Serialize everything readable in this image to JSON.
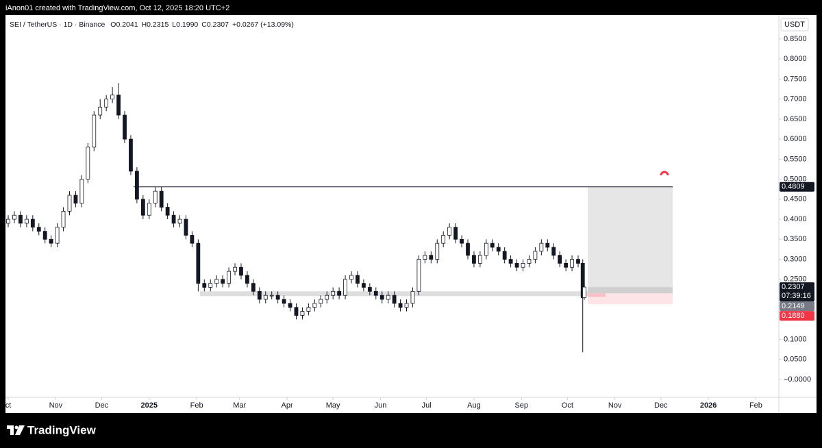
{
  "header": {
    "caption": "iAnon01 created with TradingView.com, Oct 12, 2025 18:20 UTC+2"
  },
  "footer": {
    "logo": "TradingView"
  },
  "chart_data": {
    "type": "candlestick",
    "symbol": "SEI / TetherUS · 1D · Binance",
    "ohlc_legend": [
      "O0.2041",
      "H0.2315",
      "L0.1990",
      "C0.2307",
      "+0.0267 (+13.09%)"
    ],
    "currency": "USDT",
    "x": [
      0,
      4,
      8,
      12,
      16,
      20,
      24,
      28,
      32,
      36,
      40,
      44,
      48,
      52,
      56,
      60,
      64,
      68,
      72,
      76,
      80,
      84,
      88,
      92,
      96,
      100,
      104,
      108,
      112,
      116,
      120,
      124,
      128,
      132,
      136,
      140,
      144,
      148,
      152,
      156,
      160,
      164,
      168,
      172,
      176,
      180,
      184,
      188,
      192,
      196,
      200,
      204,
      208,
      212,
      216,
      220,
      224,
      228,
      232,
      236,
      240,
      244,
      248,
      252,
      256,
      260,
      264,
      268,
      272,
      276,
      280,
      284,
      288,
      292,
      296,
      300,
      304,
      308,
      312,
      316,
      320,
      324,
      328,
      332,
      336,
      340,
      344,
      348,
      352,
      356,
      360,
      364,
      368,
      372,
      375,
      376
    ],
    "open": [
      0.39,
      0.4,
      0.41,
      0.39,
      0.4,
      0.38,
      0.37,
      0.35,
      0.34,
      0.38,
      0.42,
      0.46,
      0.44,
      0.5,
      0.58,
      0.66,
      0.68,
      0.7,
      0.71,
      0.66,
      0.6,
      0.52,
      0.45,
      0.41,
      0.44,
      0.47,
      0.43,
      0.41,
      0.39,
      0.4,
      0.36,
      0.34,
      0.24,
      0.23,
      0.24,
      0.25,
      0.24,
      0.27,
      0.28,
      0.26,
      0.24,
      0.22,
      0.2,
      0.21,
      0.21,
      0.2,
      0.19,
      0.18,
      0.16,
      0.17,
      0.18,
      0.19,
      0.2,
      0.21,
      0.22,
      0.21,
      0.25,
      0.26,
      0.24,
      0.23,
      0.22,
      0.21,
      0.2,
      0.21,
      0.19,
      0.18,
      0.19,
      0.22,
      0.3,
      0.31,
      0.3,
      0.34,
      0.36,
      0.38,
      0.35,
      0.34,
      0.31,
      0.29,
      0.31,
      0.34,
      0.33,
      0.32,
      0.3,
      0.29,
      0.28,
      0.29,
      0.3,
      0.32,
      0.34,
      0.33,
      0.31,
      0.29,
      0.28,
      0.3,
      0.29,
      0.2041
    ],
    "high": [
      0.41,
      0.42,
      0.42,
      0.41,
      0.41,
      0.39,
      0.38,
      0.36,
      0.39,
      0.43,
      0.47,
      0.47,
      0.51,
      0.59,
      0.67,
      0.7,
      0.71,
      0.73,
      0.74,
      0.67,
      0.61,
      0.53,
      0.46,
      0.45,
      0.48,
      0.48,
      0.44,
      0.42,
      0.41,
      0.41,
      0.37,
      0.35,
      0.25,
      0.25,
      0.26,
      0.26,
      0.28,
      0.29,
      0.29,
      0.27,
      0.25,
      0.23,
      0.22,
      0.22,
      0.22,
      0.21,
      0.2,
      0.19,
      0.18,
      0.19,
      0.2,
      0.21,
      0.22,
      0.23,
      0.23,
      0.26,
      0.27,
      0.27,
      0.25,
      0.24,
      0.23,
      0.22,
      0.22,
      0.22,
      0.2,
      0.2,
      0.23,
      0.31,
      0.32,
      0.32,
      0.35,
      0.37,
      0.39,
      0.39,
      0.36,
      0.35,
      0.32,
      0.32,
      0.35,
      0.35,
      0.34,
      0.33,
      0.31,
      0.3,
      0.3,
      0.31,
      0.33,
      0.35,
      0.35,
      0.34,
      0.32,
      0.3,
      0.31,
      0.31,
      0.3,
      0.2315
    ],
    "low": [
      0.38,
      0.39,
      0.38,
      0.38,
      0.37,
      0.36,
      0.34,
      0.33,
      0.33,
      0.37,
      0.41,
      0.43,
      0.43,
      0.49,
      0.57,
      0.65,
      0.67,
      0.69,
      0.65,
      0.59,
      0.51,
      0.44,
      0.4,
      0.4,
      0.43,
      0.42,
      0.4,
      0.38,
      0.38,
      0.35,
      0.33,
      0.22,
      0.22,
      0.22,
      0.23,
      0.23,
      0.23,
      0.26,
      0.25,
      0.23,
      0.21,
      0.19,
      0.19,
      0.2,
      0.19,
      0.18,
      0.17,
      0.15,
      0.15,
      0.16,
      0.17,
      0.18,
      0.19,
      0.2,
      0.2,
      0.2,
      0.24,
      0.23,
      0.22,
      0.21,
      0.2,
      0.19,
      0.19,
      0.18,
      0.17,
      0.17,
      0.18,
      0.21,
      0.29,
      0.29,
      0.29,
      0.33,
      0.35,
      0.34,
      0.33,
      0.3,
      0.28,
      0.28,
      0.3,
      0.32,
      0.31,
      0.29,
      0.28,
      0.27,
      0.27,
      0.28,
      0.29,
      0.31,
      0.32,
      0.3,
      0.28,
      0.27,
      0.27,
      0.28,
      0.068,
      0.199
    ],
    "close": [
      0.4,
      0.41,
      0.39,
      0.4,
      0.38,
      0.37,
      0.35,
      0.34,
      0.38,
      0.42,
      0.46,
      0.44,
      0.5,
      0.58,
      0.66,
      0.68,
      0.7,
      0.71,
      0.66,
      0.6,
      0.52,
      0.45,
      0.41,
      0.44,
      0.47,
      0.43,
      0.41,
      0.39,
      0.4,
      0.36,
      0.34,
      0.24,
      0.23,
      0.24,
      0.25,
      0.24,
      0.27,
      0.28,
      0.26,
      0.24,
      0.22,
      0.2,
      0.21,
      0.21,
      0.2,
      0.19,
      0.18,
      0.16,
      0.17,
      0.18,
      0.19,
      0.2,
      0.21,
      0.22,
      0.21,
      0.25,
      0.26,
      0.24,
      0.23,
      0.22,
      0.21,
      0.2,
      0.21,
      0.19,
      0.18,
      0.19,
      0.22,
      0.3,
      0.31,
      0.3,
      0.34,
      0.36,
      0.38,
      0.35,
      0.34,
      0.31,
      0.29,
      0.31,
      0.34,
      0.33,
      0.32,
      0.3,
      0.29,
      0.28,
      0.29,
      0.3,
      0.32,
      0.34,
      0.33,
      0.31,
      0.29,
      0.28,
      0.3,
      0.29,
      0.2041,
      0.2307
    ],
    "up_color": "#ffffff",
    "down_color": "#131722",
    "wick_color": "#131722",
    "xlim": [
      -1.8,
      503
    ],
    "xticks": [
      {
        "value": 0,
        "label": "ct"
      },
      {
        "value": 31,
        "label": "Nov"
      },
      {
        "value": 61,
        "label": "Dec"
      },
      {
        "value": 92,
        "label": "2025"
      },
      {
        "value": 123,
        "label": "Feb"
      },
      {
        "value": 151,
        "label": "Mar"
      },
      {
        "value": 182,
        "label": "Apr"
      },
      {
        "value": 212,
        "label": "May"
      },
      {
        "value": 243,
        "label": "Jun"
      },
      {
        "value": 273,
        "label": "Jul"
      },
      {
        "value": 304,
        "label": "Aug"
      },
      {
        "value": 335,
        "label": "Sep"
      },
      {
        "value": 365,
        "label": "Oct"
      },
      {
        "value": 396,
        "label": "Nov"
      },
      {
        "value": 426,
        "label": "Dec"
      },
      {
        "value": 457,
        "label": "2026"
      },
      {
        "value": 488,
        "label": "Feb"
      }
    ],
    "ylim": [
      -0.0445,
      0.9097
    ],
    "yticks": [
      {
        "value": 0.85,
        "label": "0.8500"
      },
      {
        "value": 0.8,
        "label": "0.8000"
      },
      {
        "value": 0.75,
        "label": "0.7500"
      },
      {
        "value": 0.7,
        "label": "0.7000"
      },
      {
        "value": 0.65,
        "label": "0.6500"
      },
      {
        "value": 0.6,
        "label": "0.6000"
      },
      {
        "value": 0.55,
        "label": "0.5500"
      },
      {
        "value": 0.5,
        "label": "0.5000"
      },
      {
        "value": 0.45,
        "label": "0.4500"
      },
      {
        "value": 0.4,
        "label": "0.4000"
      },
      {
        "value": 0.35,
        "label": "0.3500"
      },
      {
        "value": 0.3,
        "label": "0.3000"
      },
      {
        "value": 0.25,
        "label": "0.2500"
      },
      {
        "value": 0.1,
        "label": "0.1000"
      },
      {
        "value": 0.05,
        "label": "0.0500"
      },
      {
        "value": 0,
        "label": "−0.0000"
      }
    ],
    "grid": false,
    "price_tags": [
      {
        "value": 0.4809,
        "label": "0.4809",
        "color": "#131722"
      },
      {
        "value": 0.2307,
        "label": "0.2307",
        "color": "#131722"
      },
      {
        "value": 0.2149,
        "label": "0.2149",
        "color": "#787b86"
      },
      {
        "value": 0.188,
        "label": "0.1880",
        "color": "#f23645"
      }
    ],
    "countdown": "07:39:16"
  }
}
